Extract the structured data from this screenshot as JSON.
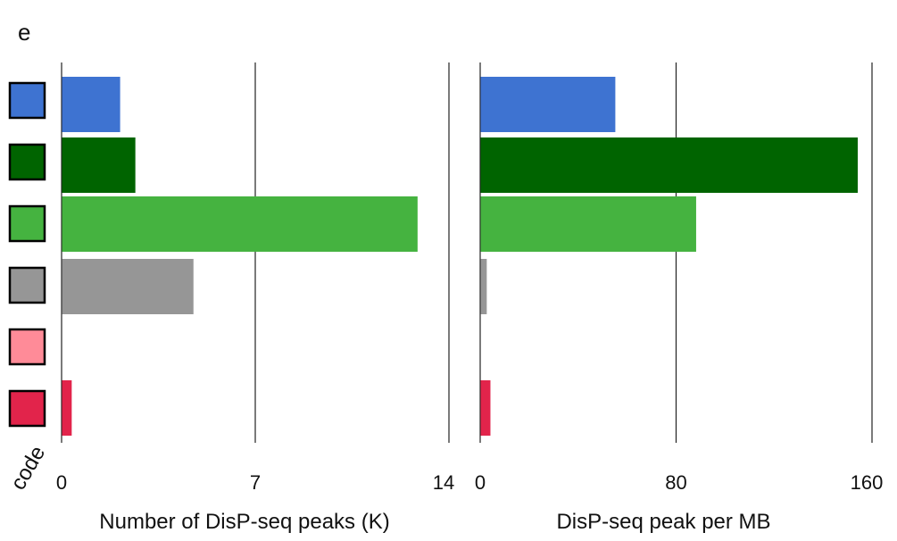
{
  "title_fragment": "e",
  "legend_axis_label": "code",
  "chart_data": [
    {
      "type": "bar",
      "orientation": "horizontal",
      "categories_count": 6,
      "values": [
        2.1,
        2.65,
        12.85,
        4.75,
        0,
        0.35
      ],
      "xlabel": "Number of DisP-seq peaks (K)",
      "xlim": [
        0,
        14
      ],
      "xticks": [
        "0",
        "7",
        "14"
      ],
      "grid": true
    },
    {
      "type": "bar",
      "orientation": "horizontal",
      "categories_count": 6,
      "values": [
        55,
        154,
        88,
        2.5,
        0,
        4
      ],
      "xlabel": "DisP-seq peak per MB",
      "xlim": [
        0,
        160
      ],
      "xticks": [
        "0",
        "80",
        "160"
      ],
      "grid": true
    }
  ],
  "category_colors": [
    "#3e73d1",
    "#006400",
    "#45b340",
    "#969696",
    "#ff8b98",
    "#e2244b"
  ]
}
